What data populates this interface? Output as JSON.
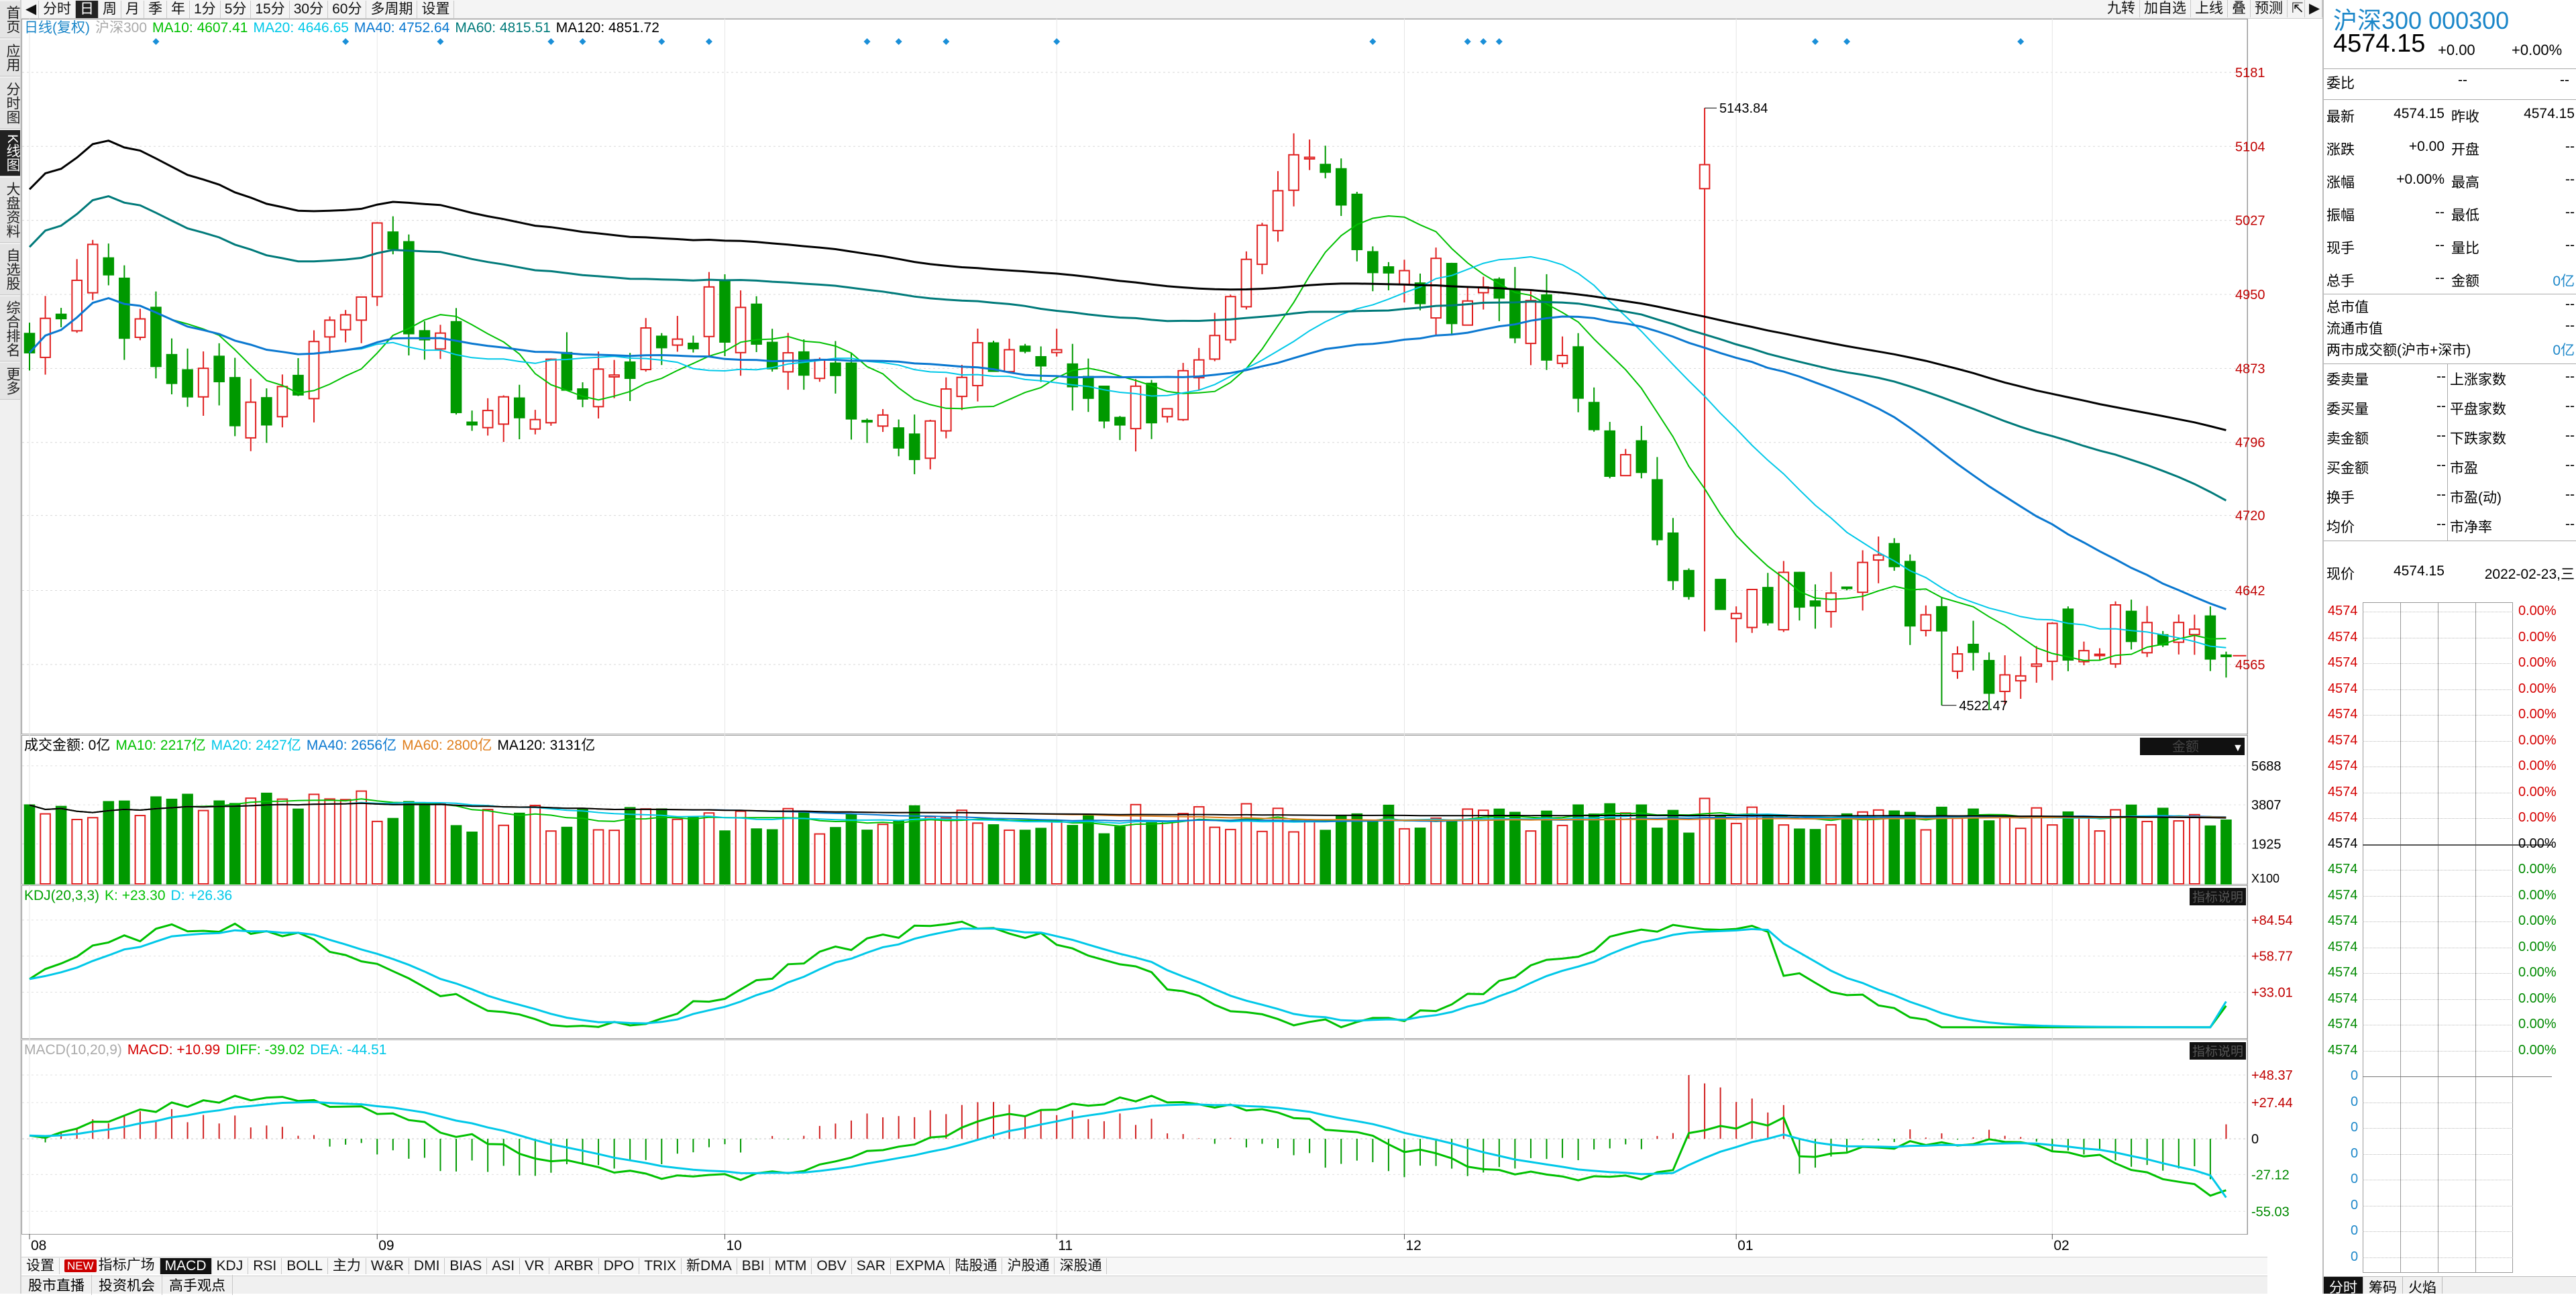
{
  "left_nav": [
    {
      "label": "首页",
      "active": false
    },
    {
      "label": "应用",
      "active": false
    },
    {
      "label": "分时图",
      "active": false
    },
    {
      "label": "K线图",
      "active": true
    },
    {
      "label": "大盘资料",
      "active": false
    },
    {
      "label": "自选股",
      "active": false
    },
    {
      "label": "综合排名",
      "active": false
    },
    {
      "label": "更多",
      "active": false
    }
  ],
  "toolbar": {
    "periods": [
      {
        "label": "分时",
        "active": false
      },
      {
        "label": "日",
        "active": true
      },
      {
        "label": "周",
        "active": false
      },
      {
        "label": "月",
        "active": false
      },
      {
        "label": "季",
        "active": false
      },
      {
        "label": "年",
        "active": false
      },
      {
        "label": "1分",
        "active": false
      },
      {
        "label": "5分",
        "active": false
      },
      {
        "label": "15分",
        "active": false
      },
      {
        "label": "30分",
        "active": false
      },
      {
        "label": "60分",
        "active": false
      },
      {
        "label": "多周期",
        "active": false
      },
      {
        "label": "设置",
        "active": false
      }
    ],
    "right_buttons": [
      "九转",
      "加自选",
      "上线",
      "叠",
      "预测"
    ]
  },
  "main_legend": {
    "prefix": "日线(复权)",
    "symbol": "沪深300",
    "items": [
      {
        "text": "MA10: 4607.41",
        "color": "#00c000"
      },
      {
        "text": "MA20: 4646.65",
        "color": "#00c8e8"
      },
      {
        "text": "MA40: 4752.64",
        "color": "#0a78d0"
      },
      {
        "text": "MA60: 4815.51",
        "color": "#007a7a"
      },
      {
        "text": "MA120: 4851.72",
        "color": "#000000"
      }
    ]
  },
  "volume_legend": {
    "label": "成交金额: 0亿",
    "items": [
      {
        "text": "MA10: 2217亿",
        "color": "#00c000"
      },
      {
        "text": "MA20: 2427亿",
        "color": "#00c8e8"
      },
      {
        "text": "MA40: 2656亿",
        "color": "#0a78d0"
      },
      {
        "text": "MA60: 2800亿",
        "color": "#e08020"
      },
      {
        "text": "MA120: 3131亿",
        "color": "#000000"
      }
    ],
    "tag": "金额",
    "unit": "X100"
  },
  "kdj_legend": {
    "label": "KDJ(20,3,3)",
    "items": [
      {
        "text": "K: +23.30",
        "color": "#00c000"
      },
      {
        "text": "D: +26.36",
        "color": "#00c8e8"
      }
    ],
    "tag": "指标说明"
  },
  "macd_legend": {
    "label": "MACD(10,20,9)",
    "items": [
      {
        "text": "MACD: +10.99",
        "color": "#d40000"
      },
      {
        "text": "DIFF: -39.02",
        "color": "#00c000"
      },
      {
        "text": "DEA: -44.51",
        "color": "#00c8e8"
      }
    ],
    "tag": "指标说明"
  },
  "axes": {
    "price_ticks": [
      "5181",
      "5104",
      "5027",
      "4950",
      "4873",
      "4796",
      "4720",
      "4642",
      "4565"
    ],
    "volume_ticks": [
      "5688",
      "3807",
      "1925"
    ],
    "kdj_ticks": [
      "+84.54",
      "+58.77",
      "+33.01"
    ],
    "macd_ticks": [
      "+48.37",
      "+27.44",
      "0",
      "-27.12",
      "-55.03"
    ],
    "months": [
      "08",
      "09",
      "10",
      "11",
      "12",
      "01",
      "02"
    ]
  },
  "annotations": {
    "high_label": "5143.84",
    "low_label": "4522.47"
  },
  "chart_data": {
    "type": "candlestick",
    "title": "沪深300 000300",
    "subtitle": "日线(复权)",
    "price_range": [
      4522.47,
      5181
    ],
    "high": 5143.84,
    "low": 4522.47,
    "last_close": 4574.15,
    "months": [
      "08",
      "09",
      "10",
      "11",
      "12",
      "01",
      "02"
    ],
    "ma_latest": {
      "MA10": 4607.41,
      "MA20": 4646.65,
      "MA40": 4752.64,
      "MA60": 4815.51,
      "MA120": 4851.72
    },
    "volume_ma_latest": {
      "MA10": 2217,
      "MA20": 2427,
      "MA40": 2656,
      "MA60": 2800,
      "MA120": 3131
    },
    "kdj_latest": {
      "K": 23.3,
      "D": 26.36
    },
    "macd_latest": {
      "MACD": 10.99,
      "DIFF": -39.02,
      "DEA": -44.51
    }
  },
  "right_panel": {
    "title": "沪深300 000300",
    "price": "4574.15",
    "change": "+0.00",
    "change_pct": "+0.00%",
    "weibi": {
      "label": "委比",
      "v1": "--",
      "v2": "--"
    },
    "quote_rows": [
      {
        "l1": "最新",
        "v1": "4574.15",
        "l2": "昨收",
        "v2": "4574.15"
      },
      {
        "l1": "涨跌",
        "v1": "+0.00",
        "l2": "开盘",
        "v2": "--"
      },
      {
        "l1": "涨幅",
        "v1": "+0.00%",
        "l2": "最高",
        "v2": "--"
      },
      {
        "l1": "振幅",
        "v1": "--",
        "l2": "最低",
        "v2": "--"
      },
      {
        "l1": "现手",
        "v1": "--",
        "l2": "量比",
        "v2": "--"
      },
      {
        "l1": "总手",
        "v1": "--",
        "l2": "金额",
        "v2": "0亿"
      }
    ],
    "market_rows": [
      {
        "label": "总市值",
        "value": "--"
      },
      {
        "label": "流通市值",
        "value": "--"
      },
      {
        "label": "两市成交额(沪市+深市)",
        "value": "0亿"
      }
    ],
    "stat_rows": [
      {
        "l1": "委卖量",
        "v1": "--",
        "l2": "上涨家数",
        "v2": "--"
      },
      {
        "l1": "委买量",
        "v1": "--",
        "l2": "平盘家数",
        "v2": "--"
      },
      {
        "l1": "卖金额",
        "v1": "--",
        "l2": "下跌家数",
        "v2": "--"
      },
      {
        "l1": "买金额",
        "v1": "--",
        "l2": "市盈",
        "v2": "--"
      },
      {
        "l1": "换手",
        "v1": "--",
        "l2": "市盈(动)",
        "v2": "--"
      },
      {
        "l1": "均价",
        "v1": "--",
        "l2": "市净率",
        "v2": "--"
      }
    ],
    "current": {
      "label": "现价",
      "price": "4574.15",
      "date": "2022-02-23,三"
    },
    "ladder_price": "4574",
    "ladder_pct": "0.00%",
    "ladder_zero": "0",
    "bottom_tabs": [
      {
        "label": "分时",
        "active": true
      },
      {
        "label": "筹码",
        "active": false
      },
      {
        "label": "火焰",
        "active": false
      }
    ]
  },
  "bottom_tabs": [
    {
      "label": "设置",
      "new": false,
      "active": false
    },
    {
      "label": "指标广场",
      "new": true,
      "badge": "NEW",
      "active": false
    },
    {
      "label": "MACD",
      "new": false,
      "active": true
    },
    {
      "label": "KDJ",
      "new": false,
      "active": false
    },
    {
      "label": "RSI",
      "new": false,
      "active": false
    },
    {
      "label": "BOLL",
      "new": false,
      "active": false
    },
    {
      "label": "主力",
      "new": false,
      "active": false
    },
    {
      "label": "W&R",
      "new": false,
      "active": false
    },
    {
      "label": "DMI",
      "new": false,
      "active": false
    },
    {
      "label": "BIAS",
      "new": false,
      "active": false
    },
    {
      "label": "ASI",
      "new": false,
      "active": false
    },
    {
      "label": "VR",
      "new": false,
      "active": false
    },
    {
      "label": "ARBR",
      "new": false,
      "active": false
    },
    {
      "label": "DPO",
      "new": false,
      "active": false
    },
    {
      "label": "TRIX",
      "new": false,
      "active": false
    },
    {
      "label": "新DMA",
      "new": false,
      "active": false
    },
    {
      "label": "BBI",
      "new": false,
      "active": false
    },
    {
      "label": "MTM",
      "new": false,
      "active": false
    },
    {
      "label": "OBV",
      "new": false,
      "active": false
    },
    {
      "label": "SAR",
      "new": false,
      "active": false
    },
    {
      "label": "EXPMA",
      "new": false,
      "active": false
    },
    {
      "label": "陆股通",
      "new": false,
      "active": false
    },
    {
      "label": "沪股通",
      "new": false,
      "active": false
    },
    {
      "label": "深股通",
      "new": false,
      "active": false
    }
  ],
  "news_bar": [
    "股市直播",
    "投资机会",
    "高手观点"
  ]
}
